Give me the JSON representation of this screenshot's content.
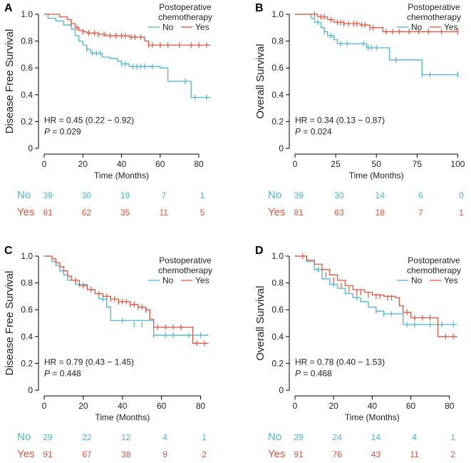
{
  "colors": {
    "no": "#4BB5D2",
    "yes": "#E4553D",
    "axis": "#000000",
    "text": "#222222"
  },
  "legend": {
    "title_line1": "Postoperative",
    "title_line2": "chemotherapy",
    "no_label": "No",
    "yes_label": "Yes"
  },
  "at_risk": {
    "no_label": "No",
    "yes_label": "Yes"
  },
  "chart_data": [
    {
      "panel": "A",
      "type": "line",
      "subtype": "kaplan-meier",
      "ylabel": "Disease Free Survival",
      "xlabel": "Time (Months)",
      "xlim": [
        0,
        87
      ],
      "ylim": [
        0,
        1.05
      ],
      "xticks": [
        0,
        20,
        40,
        60,
        80
      ],
      "yticks": [
        0,
        0.2,
        0.4,
        0.6,
        0.8,
        1.0
      ],
      "ytick_labels": [
        "0",
        "0.2",
        "0.4",
        "0.6",
        "0.8",
        "1.0"
      ],
      "hr_text": "HR = 0.45 (0.22 − 0.92)",
      "p_label": "P",
      "p_value": " = 0.029",
      "series": [
        {
          "name": "No",
          "x": [
            0,
            2,
            6,
            10,
            14,
            16,
            18,
            20,
            22,
            24,
            30,
            34,
            38,
            40,
            44,
            48,
            58,
            60,
            64,
            68,
            76,
            86
          ],
          "y": [
            1.0,
            0.97,
            0.95,
            0.92,
            0.89,
            0.84,
            0.8,
            0.77,
            0.74,
            0.71,
            0.68,
            0.67,
            0.65,
            0.63,
            0.61,
            0.61,
            0.61,
            0.6,
            0.5,
            0.5,
            0.38,
            0.38
          ],
          "censor_x": [
            22,
            25,
            27,
            29,
            40,
            42,
            46,
            48,
            50,
            52,
            56,
            73,
            78,
            84
          ],
          "censor_y": [
            0.74,
            0.71,
            0.71,
            0.71,
            0.63,
            0.63,
            0.61,
            0.61,
            0.61,
            0.61,
            0.61,
            0.5,
            0.38,
            0.38
          ]
        },
        {
          "name": "Yes",
          "x": [
            0,
            8,
            12,
            14,
            16,
            18,
            20,
            22,
            28,
            32,
            44,
            52,
            54,
            86
          ],
          "y": [
            1.0,
            0.98,
            0.96,
            0.93,
            0.9,
            0.88,
            0.87,
            0.86,
            0.85,
            0.84,
            0.83,
            0.8,
            0.77,
            0.77
          ],
          "censor_x": [
            14,
            17,
            20,
            23,
            26,
            28,
            31,
            34,
            37,
            40,
            42,
            45,
            47,
            50,
            54,
            56,
            60,
            64,
            70,
            76,
            80,
            84
          ],
          "censor_y": [
            0.93,
            0.9,
            0.87,
            0.86,
            0.86,
            0.85,
            0.85,
            0.84,
            0.84,
            0.84,
            0.84,
            0.83,
            0.83,
            0.83,
            0.77,
            0.77,
            0.77,
            0.77,
            0.77,
            0.77,
            0.77,
            0.77
          ]
        }
      ],
      "risk_table": {
        "no": [
          "39",
          "30",
          "19",
          "7",
          "1"
        ],
        "yes": [
          "81",
          "62",
          "35",
          "11",
          "5"
        ]
      }
    },
    {
      "panel": "B",
      "type": "line",
      "subtype": "kaplan-meier",
      "ylabel": "Overall Survival",
      "xlabel": "Time (Months)",
      "xlim": [
        0,
        102
      ],
      "ylim": [
        0,
        1.05
      ],
      "xticks": [
        0,
        25,
        50,
        75,
        100
      ],
      "yticks": [
        0,
        0.2,
        0.4,
        0.6,
        0.8,
        1.0
      ],
      "ytick_labels": [
        "0",
        "0.2",
        "0.4",
        "0.6",
        "0.8",
        "1.0"
      ],
      "hr_text": "HR = 0.34 (0.13 − 0.87)",
      "p_label": "P",
      "p_value": " = 0.024",
      "series": [
        {
          "name": "No",
          "x": [
            0,
            10,
            12,
            16,
            18,
            20,
            24,
            26,
            44,
            58,
            60,
            78,
            100
          ],
          "y": [
            1.0,
            0.97,
            0.94,
            0.9,
            0.87,
            0.84,
            0.81,
            0.78,
            0.75,
            0.66,
            0.66,
            0.55,
            0.55
          ],
          "censor_x": [
            14,
            18,
            22,
            28,
            32,
            42,
            45,
            47,
            50,
            62,
            78,
            83,
            100
          ],
          "censor_y": [
            0.94,
            0.87,
            0.84,
            0.78,
            0.78,
            0.78,
            0.75,
            0.75,
            0.75,
            0.66,
            0.55,
            0.55,
            0.55
          ]
        },
        {
          "name": "Yes",
          "x": [
            0,
            14,
            20,
            24,
            30,
            40,
            46,
            54,
            100
          ],
          "y": [
            1.0,
            0.98,
            0.96,
            0.94,
            0.93,
            0.92,
            0.9,
            0.87,
            0.87
          ],
          "censor_x": [
            12,
            16,
            18,
            22,
            26,
            28,
            30,
            33,
            36,
            38,
            41,
            43,
            46,
            48,
            56,
            60,
            64,
            70,
            76,
            82,
            90,
            100
          ],
          "censor_y": [
            1.0,
            0.98,
            0.98,
            0.96,
            0.94,
            0.94,
            0.93,
            0.93,
            0.93,
            0.93,
            0.92,
            0.92,
            0.9,
            0.9,
            0.87,
            0.87,
            0.87,
            0.87,
            0.87,
            0.87,
            0.87,
            0.87
          ]
        }
      ],
      "risk_table": {
        "no": [
          "39",
          "30",
          "14",
          "6",
          "0"
        ],
        "yes": [
          "81",
          "63",
          "18",
          "7",
          "1"
        ]
      }
    },
    {
      "panel": "C",
      "type": "line",
      "subtype": "kaplan-meier",
      "ylabel": "Disease Free Survival",
      "xlabel": "Time (Months)",
      "xlim": [
        0,
        86
      ],
      "ylim": [
        0,
        1.05
      ],
      "xticks": [
        0,
        20,
        40,
        60,
        80
      ],
      "yticks": [
        0,
        0.2,
        0.4,
        0.6,
        0.8,
        1.0
      ],
      "ytick_labels": [
        "0",
        "0.2",
        "0.4",
        "0.6",
        "0.8",
        "1.0"
      ],
      "hr_text": "HR = 0.79 (0.43 − 1.45)",
      "p_label": "P",
      "p_value": " = 0.448",
      "series": [
        {
          "name": "No",
          "x": [
            0,
            4,
            6,
            8,
            10,
            12,
            16,
            22,
            26,
            28,
            32,
            34,
            56,
            84
          ],
          "y": [
            1.0,
            0.96,
            0.93,
            0.89,
            0.86,
            0.82,
            0.79,
            0.75,
            0.72,
            0.68,
            0.62,
            0.52,
            0.41,
            0.41
          ],
          "censor_x": [
            18,
            24,
            30,
            40,
            46,
            50,
            56,
            62,
            66,
            74,
            80
          ],
          "censor_y": [
            0.79,
            0.75,
            0.68,
            0.52,
            0.49,
            0.49,
            0.41,
            0.41,
            0.41,
            0.41,
            0.41
          ]
        },
        {
          "name": "Yes",
          "x": [
            0,
            4,
            6,
            8,
            10,
            12,
            14,
            18,
            22,
            26,
            30,
            34,
            38,
            44,
            48,
            52,
            54,
            56,
            76,
            84
          ],
          "y": [
            1.0,
            0.98,
            0.95,
            0.92,
            0.89,
            0.85,
            0.82,
            0.78,
            0.75,
            0.72,
            0.7,
            0.68,
            0.66,
            0.64,
            0.62,
            0.6,
            0.53,
            0.47,
            0.35,
            0.35
          ],
          "censor_x": [
            16,
            20,
            24,
            28,
            32,
            34,
            36,
            38,
            40,
            42,
            44,
            46,
            48,
            50,
            52,
            58,
            62,
            66,
            70,
            78,
            82
          ],
          "censor_y": [
            0.82,
            0.78,
            0.75,
            0.72,
            0.7,
            0.68,
            0.68,
            0.66,
            0.66,
            0.66,
            0.64,
            0.64,
            0.62,
            0.62,
            0.6,
            0.47,
            0.47,
            0.47,
            0.47,
            0.35,
            0.35
          ]
        }
      ],
      "risk_table": {
        "no": [
          "29",
          "22",
          "12",
          "4",
          "1"
        ],
        "yes": [
          "91",
          "67",
          "38",
          "9",
          "2"
        ]
      }
    },
    {
      "panel": "D",
      "type": "line",
      "subtype": "kaplan-meier",
      "ylabel": "Overall Survival",
      "xlabel": "Time (Months)",
      "xlim": [
        0,
        86
      ],
      "ylim": [
        0,
        1.05
      ],
      "xticks": [
        0,
        20,
        40,
        60,
        80
      ],
      "yticks": [
        0,
        0.2,
        0.4,
        0.6,
        0.8,
        1.0
      ],
      "ytick_labels": [
        "0",
        "0.2",
        "0.4",
        "0.6",
        "0.8",
        "1.0"
      ],
      "hr_text": "HR = 0.78 (0.40 − 1.53)",
      "p_label": "P",
      "p_value": " = 0.468",
      "series": [
        {
          "name": "No",
          "x": [
            0,
            6,
            10,
            14,
            18,
            22,
            26,
            30,
            34,
            38,
            42,
            46,
            56,
            84
          ],
          "y": [
            1.0,
            0.96,
            0.9,
            0.83,
            0.79,
            0.76,
            0.72,
            0.69,
            0.66,
            0.62,
            0.59,
            0.57,
            0.49,
            0.49
          ],
          "censor_x": [
            12,
            20,
            32,
            42,
            46,
            50,
            58,
            62,
            70,
            76,
            82
          ],
          "censor_y": [
            0.9,
            0.79,
            0.69,
            0.59,
            0.57,
            0.57,
            0.49,
            0.49,
            0.49,
            0.49,
            0.49
          ]
        },
        {
          "name": "Yes",
          "x": [
            0,
            6,
            10,
            14,
            18,
            22,
            26,
            30,
            36,
            40,
            46,
            52,
            54,
            56,
            60,
            74,
            84
          ],
          "y": [
            1.0,
            0.97,
            0.94,
            0.9,
            0.86,
            0.82,
            0.78,
            0.75,
            0.73,
            0.71,
            0.7,
            0.69,
            0.63,
            0.58,
            0.54,
            0.4,
            0.4
          ],
          "censor_x": [
            4,
            16,
            20,
            24,
            28,
            32,
            34,
            38,
            42,
            44,
            48,
            50,
            58,
            62,
            66,
            70,
            78,
            82
          ],
          "censor_y": [
            1.0,
            0.86,
            0.82,
            0.78,
            0.75,
            0.73,
            0.73,
            0.71,
            0.7,
            0.7,
            0.69,
            0.69,
            0.58,
            0.54,
            0.54,
            0.54,
            0.4,
            0.4
          ]
        }
      ],
      "risk_table": {
        "no": [
          "29",
          "24",
          "14",
          "4",
          "1"
        ],
        "yes": [
          "91",
          "76",
          "43",
          "11",
          "2"
        ]
      }
    }
  ]
}
